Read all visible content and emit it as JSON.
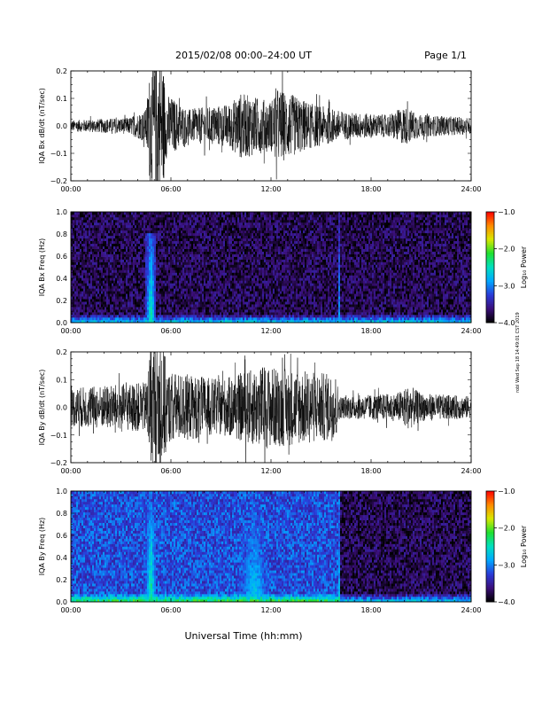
{
  "header": {
    "title": "2015/02/08  00:00–24:00 UT",
    "page": "Page 1/1"
  },
  "side_note": "robl Wed Sep 18 14:49:01 CST 2019",
  "colors": {
    "trace": "#000000",
    "colorscale": [
      "#000000",
      "#3b0f7a",
      "#2a3bd8",
      "#00a8ff",
      "#00e0c0",
      "#20e030",
      "#d8e800",
      "#ff8a00",
      "#ff0000"
    ]
  },
  "chart_data": [
    {
      "type": "line",
      "ylabel": "IQA Bx dB/dt (nT/sec)",
      "x_ticks": [
        "00:00",
        "06:00",
        "12:00",
        "18:00",
        "24:00"
      ],
      "y_ticks": [
        "0.2",
        "0.1",
        "0.0",
        "−0.1",
        "−0.2"
      ],
      "xlim": [
        0,
        24
      ],
      "ylim": [
        -0.2,
        0.2
      ],
      "envelope": [
        {
          "x": 0,
          "a": 0.02
        },
        {
          "x": 3.5,
          "a": 0.03
        },
        {
          "x": 4.5,
          "a": 0.06
        },
        {
          "x": 4.75,
          "a": 0.22
        },
        {
          "x": 5.5,
          "a": 0.25
        },
        {
          "x": 5.7,
          "a": 0.12
        },
        {
          "x": 7,
          "a": 0.06
        },
        {
          "x": 9.5,
          "a": 0.08
        },
        {
          "x": 10.2,
          "a": 0.12
        },
        {
          "x": 12,
          "a": 0.09
        },
        {
          "x": 12.3,
          "a": 0.14
        },
        {
          "x": 14.5,
          "a": 0.08
        },
        {
          "x": 16.5,
          "a": 0.05
        },
        {
          "x": 19,
          "a": 0.04
        },
        {
          "x": 20,
          "a": 0.07
        },
        {
          "x": 21,
          "a": 0.04
        },
        {
          "x": 24,
          "a": 0.03
        }
      ]
    },
    {
      "type": "heatmap",
      "ylabel": "IQA Bx Freq (Hz)",
      "colorbar_label": "Log₁₀ Power",
      "colorbar_ticks": [
        "−1.0",
        "−2.0",
        "−3.0",
        "−4.0"
      ],
      "zlim": [
        -4,
        -1
      ],
      "x_ticks": [
        "00:00",
        "06:00",
        "12:00",
        "18:00",
        "24:00"
      ],
      "y_ticks": [
        "1.0",
        "0.8",
        "0.6",
        "0.4",
        "0.2",
        "0.0"
      ],
      "xlim": [
        0,
        24
      ],
      "ylim": [
        0,
        1
      ],
      "background_level": -3.75,
      "features": [
        {
          "x": 4.8,
          "width": 0.35,
          "level": -2.3,
          "reach": 0.8
        },
        {
          "x": 16.1,
          "width": 0.05,
          "level": -2.6,
          "reach": 1.0
        }
      ]
    },
    {
      "type": "line",
      "ylabel": "IQA By dB/dt (nT/sec)",
      "x_ticks": [
        "00:00",
        "06:00",
        "12:00",
        "18:00",
        "24:00"
      ],
      "y_ticks": [
        "0.2",
        "0.1",
        "0.0",
        "−0.1",
        "−0.2"
      ],
      "xlim": [
        0,
        24
      ],
      "ylim": [
        -0.2,
        0.2
      ],
      "envelope": [
        {
          "x": 0,
          "a": 0.07
        },
        {
          "x": 4.5,
          "a": 0.09
        },
        {
          "x": 4.75,
          "a": 0.22
        },
        {
          "x": 5.5,
          "a": 0.25
        },
        {
          "x": 5.8,
          "a": 0.13
        },
        {
          "x": 9,
          "a": 0.1
        },
        {
          "x": 11.5,
          "a": 0.15
        },
        {
          "x": 15.9,
          "a": 0.12
        },
        {
          "x": 16.1,
          "a": 0.04
        },
        {
          "x": 19.5,
          "a": 0.05
        },
        {
          "x": 20.3,
          "a": 0.08
        },
        {
          "x": 21,
          "a": 0.05
        },
        {
          "x": 24,
          "a": 0.04
        }
      ]
    },
    {
      "type": "heatmap",
      "ylabel": "IQA By Freq (Hz)",
      "colorbar_label": "Log₁₀ Power",
      "colorbar_ticks": [
        "−1.0",
        "−2.0",
        "−3.0",
        "−4.0"
      ],
      "zlim": [
        -4,
        -1
      ],
      "x_ticks": [
        "00:00",
        "06:00",
        "12:00",
        "18:00",
        "24:00"
      ],
      "y_ticks": [
        "1.0",
        "0.8",
        "0.6",
        "0.4",
        "0.2",
        "0.0"
      ],
      "xlim": [
        0,
        24
      ],
      "ylim": [
        0,
        1
      ],
      "background_level": -3.2,
      "features": [
        {
          "x": 4.8,
          "width": 0.35,
          "level": -2.2,
          "reach": 0.9
        },
        {
          "x": 11,
          "width": 1.6,
          "level": -2.6,
          "reach": 1.0
        },
        {
          "x": 16.1,
          "width": 0.05,
          "level": -2.5,
          "reach": 1.0
        }
      ]
    }
  ],
  "xaxis_title": "Universal Time (hh:mm)"
}
